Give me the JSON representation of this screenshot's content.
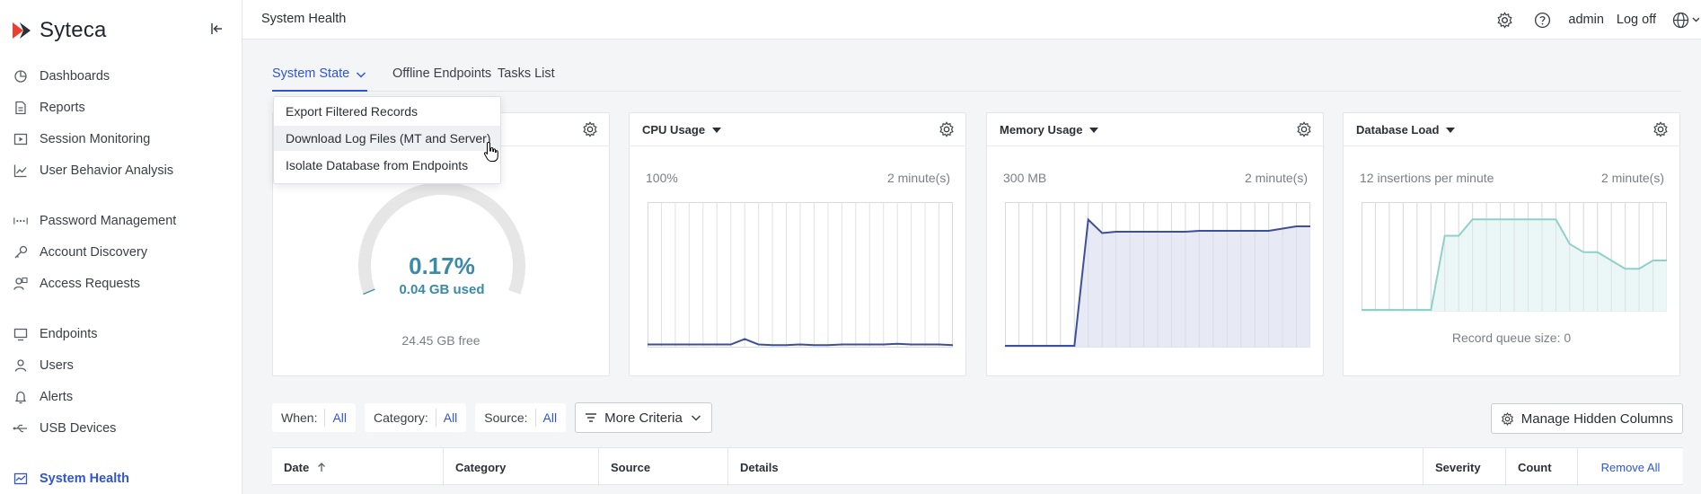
{
  "brand": {
    "name": "Syteca"
  },
  "sidebar": {
    "items": [
      {
        "label": "Dashboards",
        "icon": "pie-chart-icon"
      },
      {
        "label": "Reports",
        "icon": "document-icon"
      },
      {
        "label": "Session Monitoring",
        "icon": "play-screen-icon"
      },
      {
        "label": "User Behavior Analysis",
        "icon": "trend-chart-icon"
      },
      {
        "label": "Password Management",
        "icon": "password-dots-icon"
      },
      {
        "label": "Account Discovery",
        "icon": "key-icon"
      },
      {
        "label": "Access Requests",
        "icon": "user-request-icon"
      },
      {
        "label": "Endpoints",
        "icon": "monitor-icon"
      },
      {
        "label": "Users",
        "icon": "user-icon"
      },
      {
        "label": "Alerts",
        "icon": "bell-icon"
      },
      {
        "label": "USB Devices",
        "icon": "usb-icon"
      },
      {
        "label": "System Health",
        "icon": "health-chart-icon",
        "active": true
      }
    ]
  },
  "topbar": {
    "title": "System Health",
    "user": "admin",
    "logoff": "Log off"
  },
  "tabs": [
    {
      "label": "System State",
      "active": true
    },
    {
      "label": "Offline Endpoints"
    },
    {
      "label": "Tasks List"
    }
  ],
  "dropdown": {
    "items": [
      "Export Filtered Records",
      "Download Log Files (MT and Server)",
      "Isolate Database from Endpoints"
    ],
    "hovered_index": 1
  },
  "cards": {
    "disk": {
      "percent": "0.17%",
      "used": "0.04 GB used",
      "free": "24.45 GB free",
      "used_fraction": 0.0017
    },
    "cpu": {
      "title": "CPU Usage",
      "scale": "100%",
      "period": "2 minute(s)"
    },
    "memory": {
      "title": "Memory Usage",
      "scale": "300 MB",
      "period": "2 minute(s)"
    },
    "database": {
      "title": "Database Load",
      "scale": "12 insertions per minute",
      "period": "2 minute(s)",
      "queue": "Record queue size: 0"
    }
  },
  "chart_data": [
    {
      "type": "line",
      "title": "CPU Usage",
      "ymax_label": "100%",
      "ylim": [
        0,
        100
      ],
      "x": [
        0,
        1,
        2,
        3,
        4,
        5,
        6,
        7,
        8,
        9,
        10,
        11,
        12,
        13,
        14,
        15,
        16,
        17,
        18,
        19,
        20,
        21,
        22
      ],
      "values": [
        1,
        1,
        1,
        1,
        1,
        1,
        1,
        5,
        1,
        0.5,
        0.5,
        1,
        0.5,
        0.5,
        1,
        1,
        1,
        1,
        1.5,
        1,
        1,
        1,
        0.5
      ],
      "color": "#3e4f9a"
    },
    {
      "type": "area",
      "title": "Memory Usage",
      "ymax_label": "300 MB",
      "ylim": [
        0,
        300
      ],
      "x": [
        0,
        1,
        2,
        3,
        4,
        5,
        6,
        7,
        8,
        9,
        10,
        11,
        12,
        13,
        14,
        15,
        16,
        17,
        18,
        19,
        20,
        21,
        22
      ],
      "values": [
        0,
        0,
        0,
        0,
        0,
        0,
        281,
        251,
        254,
        254,
        254,
        254,
        254,
        254,
        256,
        256,
        256,
        256,
        256,
        256,
        261,
        266,
        266
      ],
      "color": "#3e4f9a",
      "fill": "#e3e5f3"
    },
    {
      "type": "area",
      "title": "Database Load",
      "ymax_label": "12 insertions per minute",
      "ylim": [
        0,
        12
      ],
      "x": [
        0,
        1,
        2,
        3,
        4,
        5,
        6,
        7,
        8,
        9,
        10,
        11,
        12,
        13,
        14,
        15,
        16,
        17,
        18,
        19,
        20,
        21,
        22
      ],
      "values": [
        0,
        0,
        0,
        0,
        0,
        0,
        9,
        9,
        11,
        11,
        11,
        11,
        11,
        11,
        11,
        8,
        7,
        7,
        6,
        5,
        5,
        6,
        6
      ],
      "color": "#8fd1c9",
      "fill": "#e8f6f4"
    }
  ],
  "filters": {
    "when": {
      "label": "When:",
      "value": "All"
    },
    "category": {
      "label": "Category:",
      "value": "All"
    },
    "source": {
      "label": "Source:",
      "value": "All"
    },
    "more": "More Criteria",
    "manage": "Manage Hidden Columns"
  },
  "table": {
    "columns": [
      "Date",
      "Category",
      "Source",
      "Details",
      "Severity",
      "Count"
    ],
    "remove_all": "Remove All"
  },
  "colors": {
    "accent": "#2f55d4",
    "gauge": "#3a8aa8"
  }
}
